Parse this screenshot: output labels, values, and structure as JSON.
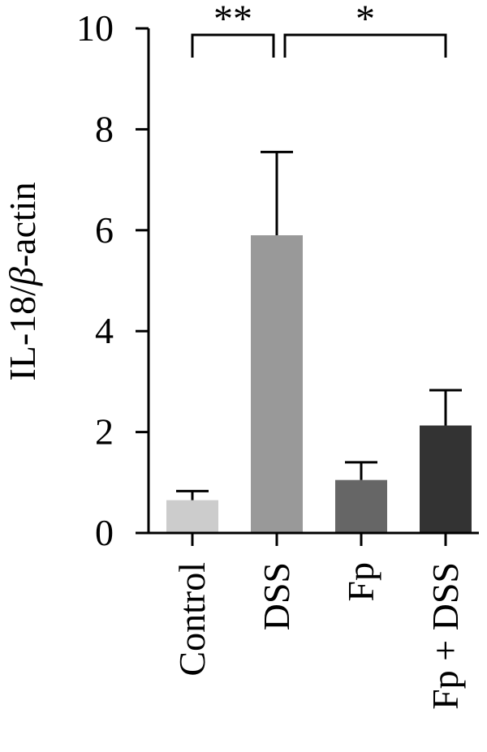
{
  "chart_data": {
    "type": "bar",
    "title": "",
    "xlabel": "",
    "ylabel_prefix": "IL-18/",
    "ylabel_greek": "β",
    "ylabel_suffix": "-actin",
    "ylim": [
      0,
      10
    ],
    "yticks": [
      0,
      2,
      4,
      6,
      8,
      10
    ],
    "grid": false,
    "categories": [
      "Control",
      "DSS",
      "Fp",
      "Fp + DSS"
    ],
    "values": [
      0.65,
      5.9,
      1.05,
      2.13
    ],
    "errors": [
      0.18,
      1.65,
      0.35,
      0.7
    ],
    "colors": [
      "#cccccc",
      "#999999",
      "#666666",
      "#333333"
    ],
    "significance": [
      {
        "from": 0,
        "to": 1,
        "label": "**"
      },
      {
        "from": 1,
        "to": 3,
        "label": "*"
      }
    ]
  }
}
